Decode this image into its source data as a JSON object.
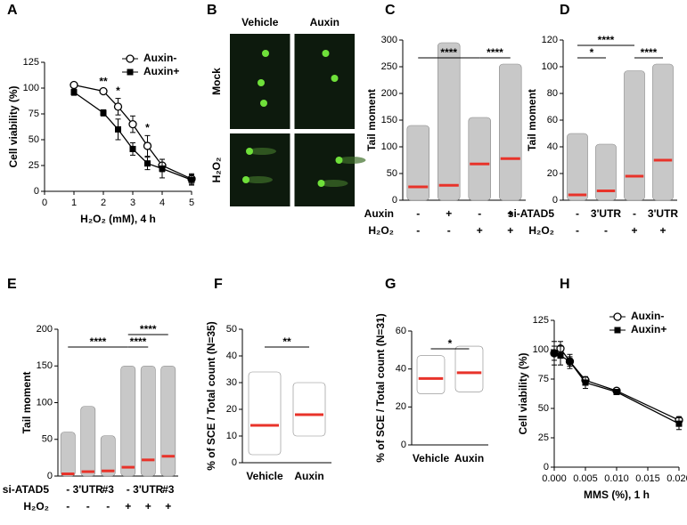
{
  "chart_data": [
    {
      "type": "line",
      "panel": "A",
      "xlabel": "H₂O₂ (mM), 4 h",
      "ylabel": "Cell viability (%)",
      "x": [
        1,
        2,
        2.5,
        3,
        3.5,
        4,
        5
      ],
      "xlim": [
        0,
        5
      ],
      "xticks": [
        0,
        1,
        2,
        3,
        4,
        5
      ],
      "ylim": [
        0,
        125
      ],
      "yticks": [
        0,
        25,
        50,
        75,
        100,
        125
      ],
      "legend": "upper right",
      "series": [
        {
          "name": "Auxin-",
          "color": "#000000",
          "marker": "open-circle",
          "values": [
            103,
            97,
            82,
            65,
            44,
            25,
            12
          ],
          "errors": [
            1,
            2,
            8,
            8,
            10,
            6,
            5
          ]
        },
        {
          "name": "Auxin+",
          "color": "#000000",
          "marker": "filled-square",
          "values": [
            96,
            76,
            60,
            41,
            27,
            22,
            11
          ],
          "errors": [
            3,
            3,
            10,
            6,
            6,
            9,
            5
          ]
        }
      ],
      "annotations": [
        {
          "text": "**",
          "x": 2
        },
        {
          "text": "*",
          "x": 2.5
        },
        {
          "text": "*",
          "x": 3.5
        }
      ]
    },
    {
      "type": "image",
      "panel": "B",
      "columns": [
        "Vehicle",
        "Auxin"
      ],
      "rows": [
        "Mock",
        "H₂O₂"
      ]
    },
    {
      "type": "dot",
      "panel": "C",
      "ylabel": "Tail moment",
      "ylim": [
        0,
        300
      ],
      "yticks": [
        0,
        50,
        100,
        150,
        200,
        250,
        300
      ],
      "values": [
        25,
        28,
        68,
        78
      ],
      "min": [
        0,
        0,
        0,
        0
      ],
      "max": [
        140,
        295,
        155,
        255
      ],
      "color": "#c8c8c8",
      "median_color": "#e8332a",
      "rows": [
        {
          "label": "Auxin",
          "values": [
            "-",
            "+",
            "-",
            "+"
          ]
        },
        {
          "label": "H₂O₂",
          "values": [
            "-",
            "-",
            "+",
            "+"
          ]
        }
      ],
      "brackets": [
        {
          "between": [
            0,
            2
          ],
          "label": "****"
        },
        {
          "between": [
            2,
            3
          ],
          "label": "****"
        }
      ]
    },
    {
      "type": "dot",
      "panel": "D",
      "ylabel": "Tail moment",
      "ylim": [
        0,
        120
      ],
      "yticks": [
        0,
        20,
        40,
        60,
        80,
        100,
        120
      ],
      "values": [
        4,
        7,
        18,
        30
      ],
      "min": [
        0,
        0,
        0,
        0
      ],
      "max": [
        50,
        42,
        97,
        102
      ],
      "color": "#c8c8c8",
      "median_color": "#e8332a",
      "rows": [
        {
          "label": "si-ATAD5",
          "values": [
            "-",
            "3'UTR",
            "-",
            "3'UTR"
          ]
        },
        {
          "label": "H₂O₂",
          "values": [
            "-",
            "-",
            "+",
            "+"
          ]
        }
      ],
      "brackets": [
        {
          "between": [
            0,
            1
          ],
          "label": "*"
        },
        {
          "between": [
            0,
            2
          ],
          "label": "****"
        },
        {
          "between": [
            2,
            3
          ],
          "label": "****"
        }
      ]
    },
    {
      "type": "dot",
      "panel": "E",
      "ylabel": "Tail moment",
      "ylim": [
        0,
        200
      ],
      "yticks": [
        0,
        50,
        100,
        150,
        200
      ],
      "values": [
        3,
        6,
        7,
        12,
        22,
        27
      ],
      "min": [
        0,
        0,
        0,
        0,
        0,
        0
      ],
      "max": [
        60,
        95,
        55,
        150,
        150,
        150
      ],
      "color": "#c8c8c8",
      "median_color": "#e8332a",
      "rows": [
        {
          "label": "si-ATAD5",
          "values": [
            "-",
            "3'UTR",
            "#3",
            "-",
            "3'UTR",
            "#3"
          ]
        },
        {
          "label": "H₂O₂",
          "values": [
            "-",
            "-",
            "-",
            "+",
            "+",
            "+"
          ]
        }
      ],
      "brackets": [
        {
          "between": [
            0,
            3
          ],
          "label": "****"
        },
        {
          "between": [
            3,
            4
          ],
          "label": "****"
        },
        {
          "between": [
            3,
            5
          ],
          "label": "****"
        }
      ]
    },
    {
      "type": "dot",
      "panel": "F",
      "ylabel": "% of SCE / Total count (N=35)",
      "ylim": [
        0,
        50
      ],
      "yticks": [
        0,
        10,
        20,
        30,
        40,
        50
      ],
      "categories": [
        "Vehicle",
        "Auxin"
      ],
      "values": [
        14,
        18
      ],
      "min": [
        3,
        10
      ],
      "max": [
        34,
        30
      ],
      "color": "#ffffff",
      "median_color": "#e8332a",
      "brackets": [
        {
          "between": [
            0,
            1
          ],
          "label": "**"
        }
      ]
    },
    {
      "type": "dot",
      "panel": "G",
      "ylabel": "% of SCE / Total count (N=31)",
      "ylim": [
        0,
        60
      ],
      "yticks": [
        0,
        20,
        40,
        60
      ],
      "categories": [
        "Vehicle",
        "Auxin"
      ],
      "values": [
        35,
        38
      ],
      "min": [
        27,
        28
      ],
      "max": [
        47,
        52
      ],
      "color": "#ffffff",
      "median_color": "#e8332a",
      "brackets": [
        {
          "between": [
            0,
            1
          ],
          "label": "*"
        }
      ]
    },
    {
      "type": "line",
      "panel": "H",
      "xlabel": "MMS (%), 1 h",
      "ylabel": "Cell viability (%)",
      "x": [
        0,
        0.001,
        0.0025,
        0.005,
        0.01,
        0.02
      ],
      "xlim": [
        0,
        0.02
      ],
      "xticks": [
        {
          "value": 0,
          "label": "0.000"
        },
        {
          "value": 0.005,
          "label": "0.005"
        },
        {
          "value": 0.01,
          "label": "0.010"
        },
        {
          "value": 0.015,
          "label": "0.015"
        },
        {
          "value": 0.02,
          "label": "0.020"
        }
      ],
      "ylim": [
        0,
        125
      ],
      "yticks": [
        0,
        25,
        50,
        75,
        100,
        125
      ],
      "legend": "upper right",
      "series": [
        {
          "name": "Auxin-",
          "color": "#000000",
          "marker": "open-circle",
          "values": [
            97,
            101,
            90,
            74,
            65,
            40
          ],
          "errors": [
            6,
            6,
            4,
            3,
            2,
            3
          ]
        },
        {
          "name": "Auxin+",
          "color": "#000000",
          "marker": "filled-square",
          "values": [
            97,
            95,
            90,
            72,
            64,
            37
          ],
          "errors": [
            10,
            8,
            6,
            5,
            2,
            5
          ]
        }
      ]
    }
  ]
}
